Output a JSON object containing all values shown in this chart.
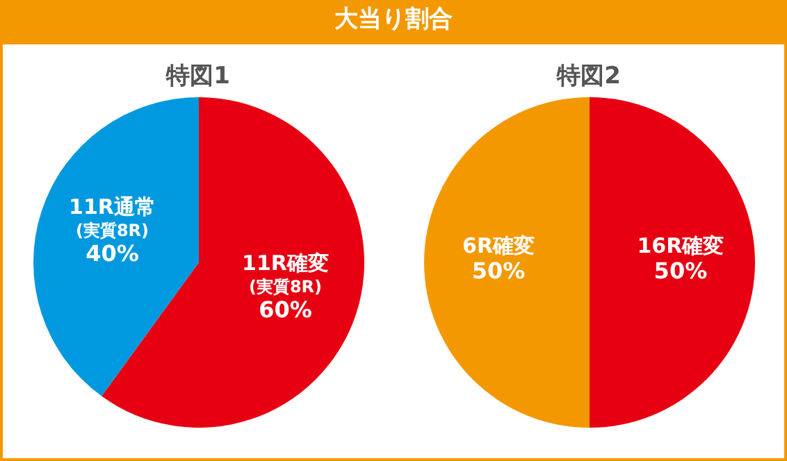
{
  "chart_data": [
    {
      "type": "other",
      "title": "大当り割合"
    },
    {
      "type": "pie",
      "title": "特図1",
      "categories": [
        "11R確変\n(実質8R)",
        "11R通常\n(実質8R)"
      ],
      "values": [
        60,
        40
      ],
      "colors": [
        "#e60012",
        "#0099e0"
      ],
      "value_labels": [
        "60%",
        "40%"
      ]
    },
    {
      "type": "pie",
      "title": "特図2",
      "categories": [
        "16R確変",
        "6R確変"
      ],
      "values": [
        50,
        50
      ],
      "colors": [
        "#e60012",
        "#f39800"
      ],
      "value_labels": [
        "50%",
        "50%"
      ]
    }
  ]
}
